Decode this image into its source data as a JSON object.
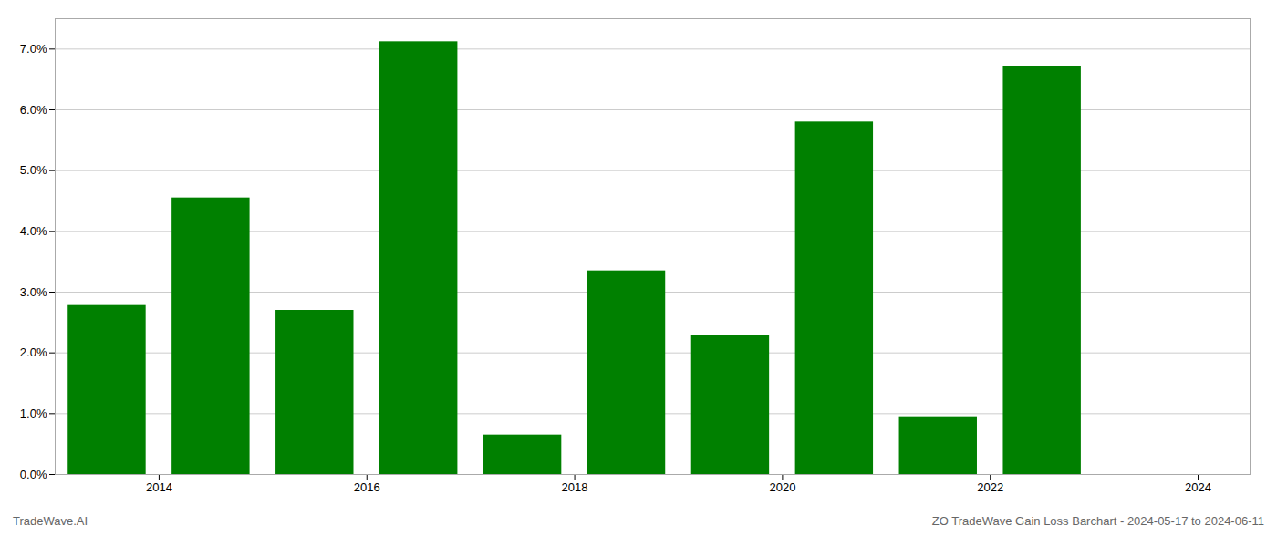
{
  "chart_data": {
    "type": "bar",
    "x": [
      2013.5,
      2014.5,
      2015.5,
      2016.5,
      2017.5,
      2018.5,
      2019.5,
      2020.5,
      2021.5,
      2022.5
    ],
    "values": [
      0.0278,
      0.0455,
      0.027,
      0.0712,
      0.0065,
      0.0335,
      0.0228,
      0.058,
      0.0095,
      0.0672
    ],
    "color": "#008000",
    "xlim": [
      2013.0,
      2024.5
    ],
    "xticks": [
      2014,
      2016,
      2018,
      2020,
      2022,
      2024
    ],
    "ylim": [
      0,
      0.075
    ],
    "yticks": [
      {
        "value": 0.0,
        "label": "0.0%"
      },
      {
        "value": 0.01,
        "label": "1.0%"
      },
      {
        "value": 0.02,
        "label": "2.0%"
      },
      {
        "value": 0.03,
        "label": "3.0%"
      },
      {
        "value": 0.04,
        "label": "4.0%"
      },
      {
        "value": 0.05,
        "label": "5.0%"
      },
      {
        "value": 0.06,
        "label": "6.0%"
      },
      {
        "value": 0.07,
        "label": "7.0%"
      }
    ],
    "grid": true,
    "annotations": [
      "TradeWave.AI",
      "ZO TradeWave Gain Loss Barchart - 2024-05-17 to 2024-06-11"
    ]
  }
}
